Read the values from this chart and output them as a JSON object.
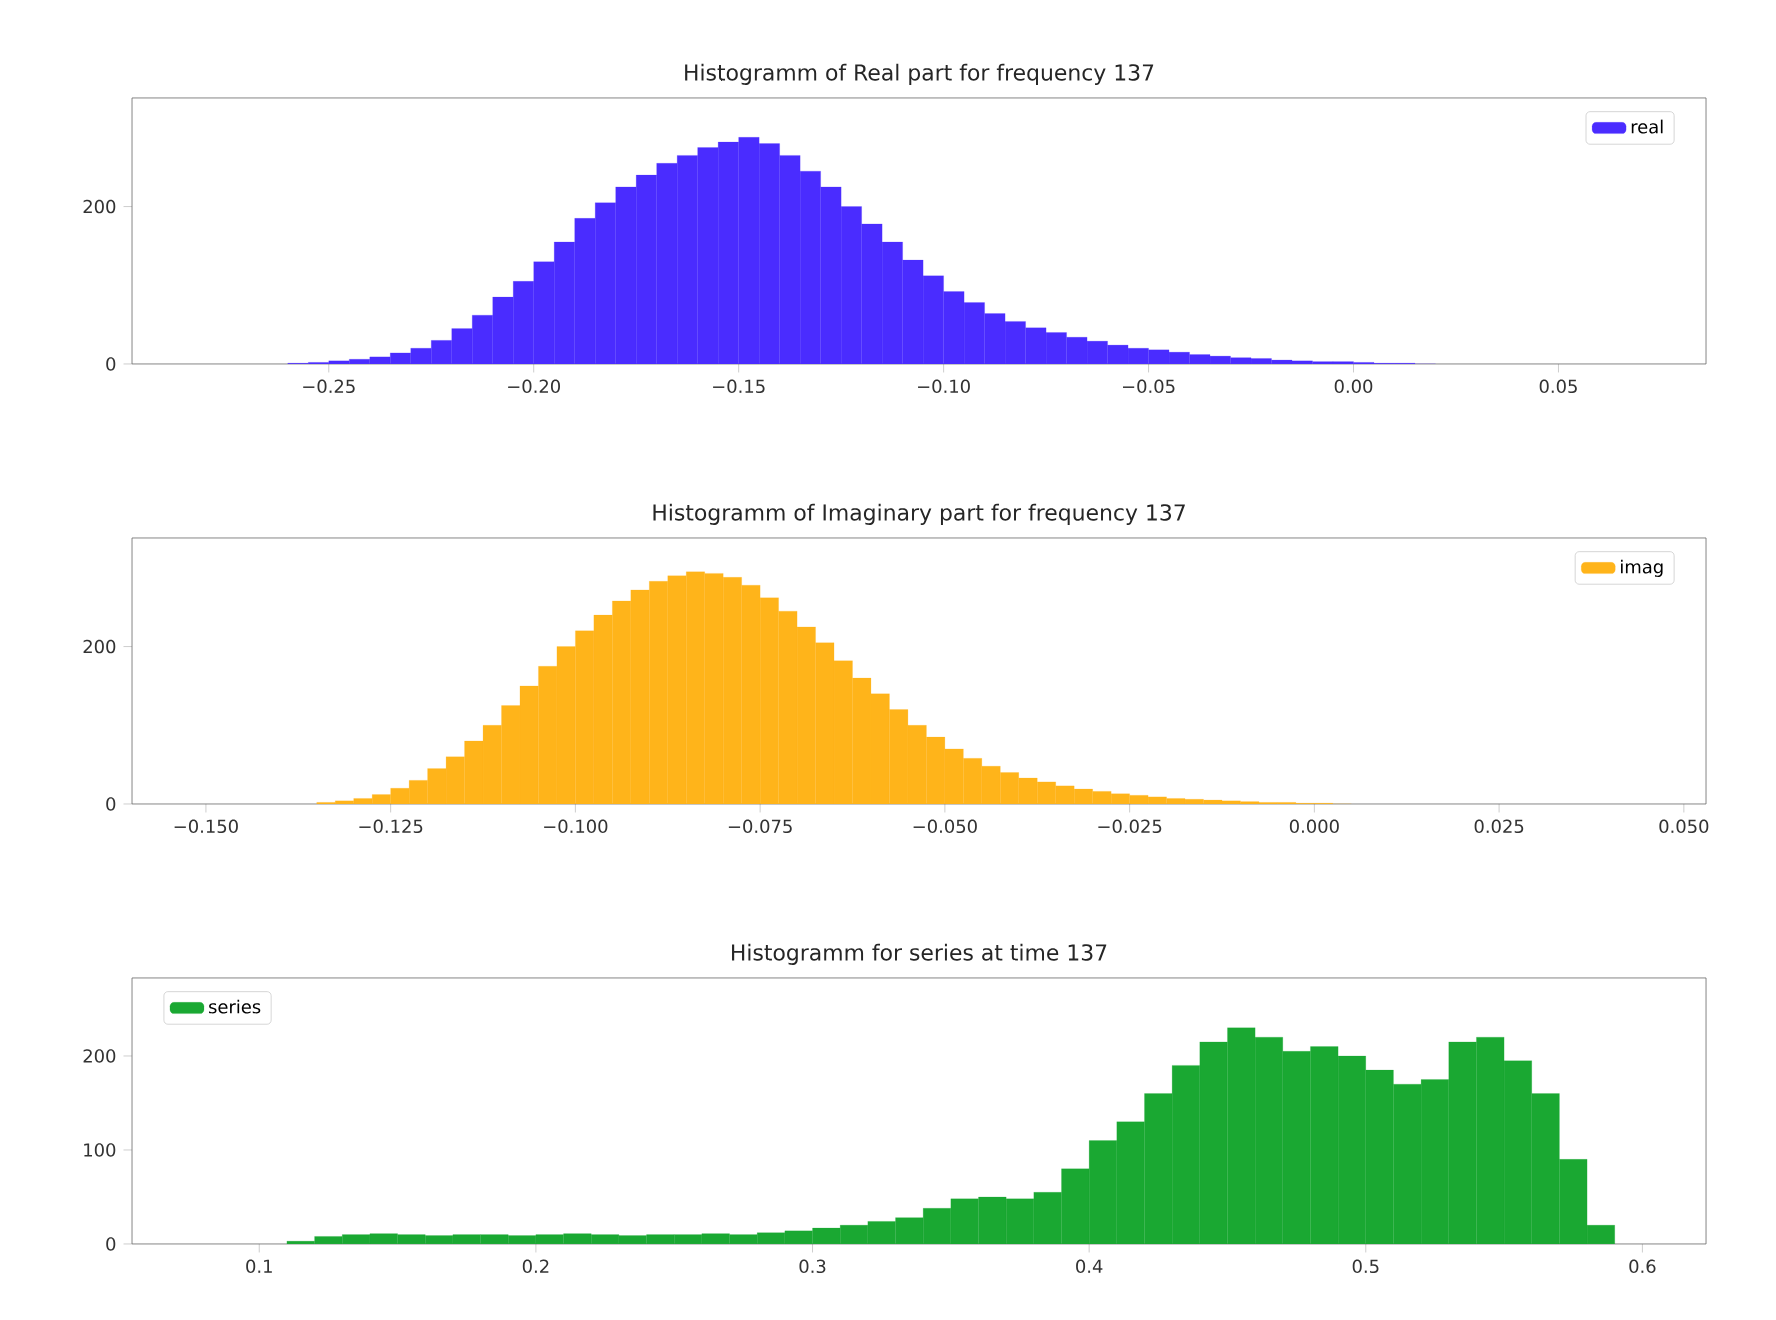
{
  "chart_data": [
    {
      "type": "histogram",
      "title": "Histogramm of Real part for frequency 137",
      "legend": "top right",
      "xlim": [
        -0.298,
        0.086
      ],
      "ylim": [
        0,
        338
      ],
      "xticks": [
        {
          "value": -0.25,
          "label": "−0.25"
        },
        {
          "value": -0.2,
          "label": "−0.20"
        },
        {
          "value": -0.15,
          "label": "−0.15"
        },
        {
          "value": -0.1,
          "label": "−0.10"
        },
        {
          "value": -0.05,
          "label": "−0.05"
        },
        {
          "value": 0,
          "label": "0.00"
        },
        {
          "value": 0.05,
          "label": "0.05"
        }
      ],
      "yticks": [
        0,
        200
      ],
      "bins": [
        -0.26,
        -0.255,
        -0.25,
        -0.245,
        -0.24,
        -0.235,
        -0.23,
        -0.225,
        -0.22,
        -0.215,
        -0.21,
        -0.205,
        -0.2,
        -0.195,
        -0.19,
        -0.185,
        -0.18,
        -0.175,
        -0.17,
        -0.165,
        -0.16,
        -0.155,
        -0.15,
        -0.145,
        -0.14,
        -0.135,
        -0.13,
        -0.125,
        -0.12,
        -0.115,
        -0.11,
        -0.105,
        -0.1,
        -0.095,
        -0.09,
        -0.085,
        -0.08,
        -0.075,
        -0.07,
        -0.065,
        -0.06,
        -0.055,
        -0.05,
        -0.045,
        -0.04,
        -0.035,
        -0.03,
        -0.025,
        -0.02,
        -0.015,
        -0.01,
        -0.005,
        0,
        0.005,
        0.01,
        0.015,
        0.02
      ],
      "series": [
        {
          "name": "real",
          "color": "#4a2cff",
          "values": [
            1,
            2,
            4,
            6,
            9,
            14,
            20,
            30,
            45,
            62,
            85,
            105,
            130,
            155,
            185,
            205,
            225,
            240,
            255,
            265,
            275,
            282,
            288,
            280,
            265,
            245,
            225,
            200,
            178,
            155,
            132,
            112,
            92,
            78,
            64,
            54,
            46,
            40,
            34,
            29,
            24,
            20,
            18,
            15,
            12,
            10,
            8,
            7,
            5,
            4,
            3,
            3,
            2,
            1,
            1,
            0
          ]
        }
      ]
    },
    {
      "type": "histogram",
      "title": "Histogramm of Imaginary part for frequency 137",
      "legend": "top right",
      "xlim": [
        -0.16,
        0.053
      ],
      "ylim": [
        0,
        338
      ],
      "xticks": [
        {
          "value": -0.15,
          "label": "−0.150"
        },
        {
          "value": -0.125,
          "label": "−0.125"
        },
        {
          "value": -0.1,
          "label": "−0.100"
        },
        {
          "value": -0.075,
          "label": "−0.075"
        },
        {
          "value": -0.05,
          "label": "−0.050"
        },
        {
          "value": -0.025,
          "label": "−0.025"
        },
        {
          "value": 0,
          "label": "0.000"
        },
        {
          "value": 0.025,
          "label": "0.025"
        },
        {
          "value": 0.05,
          "label": "0.050"
        }
      ],
      "yticks": [
        0,
        200
      ],
      "bins": [
        -0.135,
        -0.1325,
        -0.13,
        -0.1275,
        -0.125,
        -0.1225,
        -0.12,
        -0.1175,
        -0.115,
        -0.1125,
        -0.11,
        -0.1075,
        -0.105,
        -0.1025,
        -0.1,
        -0.0975,
        -0.095,
        -0.0925,
        -0.09,
        -0.0875,
        -0.085,
        -0.0825,
        -0.08,
        -0.0775,
        -0.075,
        -0.0725,
        -0.07,
        -0.0675,
        -0.065,
        -0.0625,
        -0.06,
        -0.0575,
        -0.055,
        -0.0525,
        -0.05,
        -0.0475,
        -0.045,
        -0.0425,
        -0.04,
        -0.0375,
        -0.035,
        -0.0325,
        -0.03,
        -0.0275,
        -0.025,
        -0.0225,
        -0.02,
        -0.0175,
        -0.015,
        -0.0125,
        -0.01,
        -0.0075,
        -0.005,
        -0.0025,
        0,
        0.0025,
        0.005
      ],
      "series": [
        {
          "name": "imag",
          "color": "#ffb41a",
          "values": [
            2,
            4,
            7,
            12,
            20,
            30,
            45,
            60,
            80,
            100,
            125,
            150,
            175,
            200,
            220,
            240,
            258,
            272,
            283,
            290,
            295,
            293,
            288,
            278,
            262,
            245,
            225,
            205,
            182,
            160,
            140,
            120,
            100,
            85,
            70,
            58,
            48,
            40,
            33,
            28,
            23,
            19,
            16,
            13,
            11,
            9,
            7,
            6,
            5,
            4,
            3,
            2,
            2,
            1,
            1,
            0
          ]
        }
      ]
    },
    {
      "type": "histogram",
      "title": "Histogramm for series at time 137",
      "legend": "top left",
      "xlim": [
        0.054,
        0.623
      ],
      "ylim": [
        0,
        283
      ],
      "xticks": [
        0.1,
        0.2,
        0.3,
        0.4,
        0.5,
        0.6
      ],
      "yticks": [
        0,
        100,
        200
      ],
      "bins": [
        0.11,
        0.12,
        0.13,
        0.14,
        0.15,
        0.16,
        0.17,
        0.18,
        0.19,
        0.2,
        0.21,
        0.22,
        0.23,
        0.24,
        0.25,
        0.26,
        0.27,
        0.28,
        0.29,
        0.3,
        0.31,
        0.32,
        0.33,
        0.34,
        0.35,
        0.36,
        0.37,
        0.38,
        0.39,
        0.4,
        0.41,
        0.42,
        0.43,
        0.44,
        0.45,
        0.46,
        0.47,
        0.48,
        0.49,
        0.5,
        0.51,
        0.52,
        0.53,
        0.54,
        0.55,
        0.56,
        0.57,
        0.58,
        0.59
      ],
      "series": [
        {
          "name": "series",
          "color": "#1aa832",
          "values": [
            3,
            8,
            10,
            11,
            10,
            9,
            10,
            10,
            9,
            10,
            11,
            10,
            9,
            10,
            10,
            11,
            10,
            12,
            14,
            17,
            20,
            24,
            28,
            38,
            48,
            50,
            48,
            55,
            80,
            110,
            130,
            160,
            190,
            215,
            230,
            220,
            205,
            210,
            200,
            185,
            170,
            175,
            215,
            220,
            195,
            160,
            90,
            20
          ]
        }
      ]
    }
  ]
}
